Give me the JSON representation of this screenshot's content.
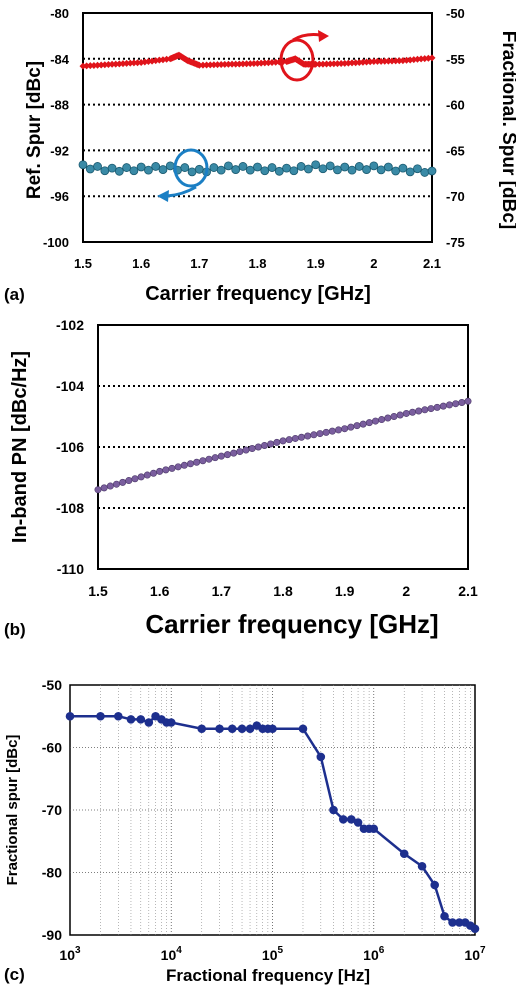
{
  "charts": {
    "a": {
      "panel_label": "(a)",
      "ylabel_left": "Ref. Spur [dBc]",
      "ylabel_right": "Fractional. Spur [dBc]",
      "xlabel": "Carrier frequency [GHz]"
    },
    "b": {
      "panel_label": "(b)",
      "ylabel": "In-band PN [dBc/Hz]",
      "xlabel": "Carrier frequency [GHz]"
    },
    "c": {
      "panel_label": "(c)",
      "ylabel": "Fractional spur [dBc]",
      "xlabel": "Fractional frequency [Hz]"
    }
  },
  "colors": {
    "ref_spur": "#1f6f8f",
    "frac_spur_a": "#e0141b",
    "pn": "#6a4f8f",
    "frac_spur_c": "#1d2f8e",
    "arrow_red": "#e0141b",
    "arrow_blue": "#1b7fc4"
  },
  "chart_data": [
    {
      "type": "line",
      "x_axis": "Carrier frequency [GHz]",
      "xlim": [
        1.5,
        2.1
      ],
      "xticks": [
        1.5,
        1.6,
        1.7,
        1.8,
        1.9,
        2.0,
        2.1
      ],
      "xtick_labels": [
        "1.5",
        "1.6",
        "1.7",
        "1.8",
        "1.9",
        "2",
        "2.1"
      ],
      "ylabel": "Ref. Spur [dBc]",
      "ylim": [
        -100,
        -80
      ],
      "yticks": [
        -100,
        -96,
        -92,
        -88,
        -84,
        -80
      ],
      "y2label": "Fractional. Spur [dBc]",
      "y2lim": [
        -75,
        -50
      ],
      "y2ticks": [
        -75,
        -70,
        -65,
        -60,
        -55,
        -50
      ],
      "grid_y": [
        -96,
        -92,
        -88,
        -84
      ],
      "series": [
        {
          "axis": "right",
          "marker": "diamond",
          "x": [
            1.5,
            1.55,
            1.6,
            1.65,
            1.665,
            1.68,
            1.7,
            1.75,
            1.8,
            1.85,
            1.865,
            1.88,
            1.9,
            1.95,
            2.0,
            2.05,
            2.1
          ],
          "values": [
            -55.8,
            -55.6,
            -55.4,
            -55.0,
            -54.6,
            -55.2,
            -55.7,
            -55.6,
            -55.5,
            -55.3,
            -55.0,
            -55.6,
            -55.6,
            -55.5,
            -55.3,
            -55.2,
            -54.9
          ]
        },
        {
          "axis": "left",
          "marker": "circle",
          "x": [
            1.5,
            1.55,
            1.6,
            1.65,
            1.7,
            1.75,
            1.8,
            1.85,
            1.9,
            1.95,
            2.0,
            2.05,
            2.1
          ],
          "values": [
            -93.4,
            -93.7,
            -93.6,
            -93.5,
            -93.8,
            -93.5,
            -93.6,
            -93.7,
            -93.4,
            -93.6,
            -93.5,
            -93.7,
            -93.8
          ]
        }
      ]
    },
    {
      "type": "line",
      "x_axis": "Carrier frequency [GHz]",
      "xlim": [
        1.5,
        2.1
      ],
      "xticks": [
        1.5,
        1.6,
        1.7,
        1.8,
        1.9,
        2.0,
        2.1
      ],
      "xtick_labels": [
        "1.5",
        "1.6",
        "1.7",
        "1.8",
        "1.9",
        "2",
        "2.1"
      ],
      "ylabel": "In-band PN [dBc/Hz]",
      "ylim": [
        -110,
        -102
      ],
      "yticks": [
        -110,
        -108,
        -106,
        -104,
        -102
      ],
      "grid_y": [
        -108,
        -106,
        -104
      ],
      "series": [
        {
          "marker": "circle",
          "x": [
            1.5,
            1.6,
            1.7,
            1.8,
            1.9,
            2.0,
            2.1
          ],
          "values": [
            -107.4,
            -106.8,
            -106.3,
            -105.8,
            -105.4,
            -104.9,
            -104.5
          ]
        }
      ]
    },
    {
      "type": "line",
      "x_axis": "Fractional frequency [Hz]",
      "x_scale": "log",
      "xlim": [
        1000,
        10000000
      ],
      "xtick_labels": [
        "10^3",
        "10^4",
        "10^5",
        "10^6",
        "10^7"
      ],
      "ylabel": "Fractional spur [dBc]",
      "ylim": [
        -90,
        -50
      ],
      "yticks": [
        -90,
        -80,
        -70,
        -60,
        -50
      ],
      "grid": "both",
      "series": [
        {
          "marker": "circle",
          "x": [
            1000,
            2000,
            3000,
            4000,
            5000,
            6000,
            7000,
            8000,
            9000,
            10000,
            20000,
            30000,
            40000,
            50000,
            60000,
            70000,
            80000,
            90000,
            100000,
            200000,
            300000,
            400000,
            500000,
            600000,
            700000,
            800000,
            900000,
            1000000,
            2000000,
            3000000,
            4000000,
            5000000,
            6000000,
            7000000,
            8000000,
            9000000,
            10000000
          ],
          "values": [
            -55,
            -55,
            -55,
            -55.5,
            -55.5,
            -56,
            -55,
            -55.5,
            -56,
            -56,
            -57,
            -57,
            -57,
            -57,
            -57,
            -56.5,
            -57,
            -57,
            -57,
            -57,
            -61.5,
            -70,
            -71.5,
            -71.5,
            -72,
            -73,
            -73,
            -73,
            -77,
            -79,
            -82,
            -87,
            -88,
            -88,
            -88,
            -88.5,
            -89
          ]
        }
      ]
    }
  ]
}
